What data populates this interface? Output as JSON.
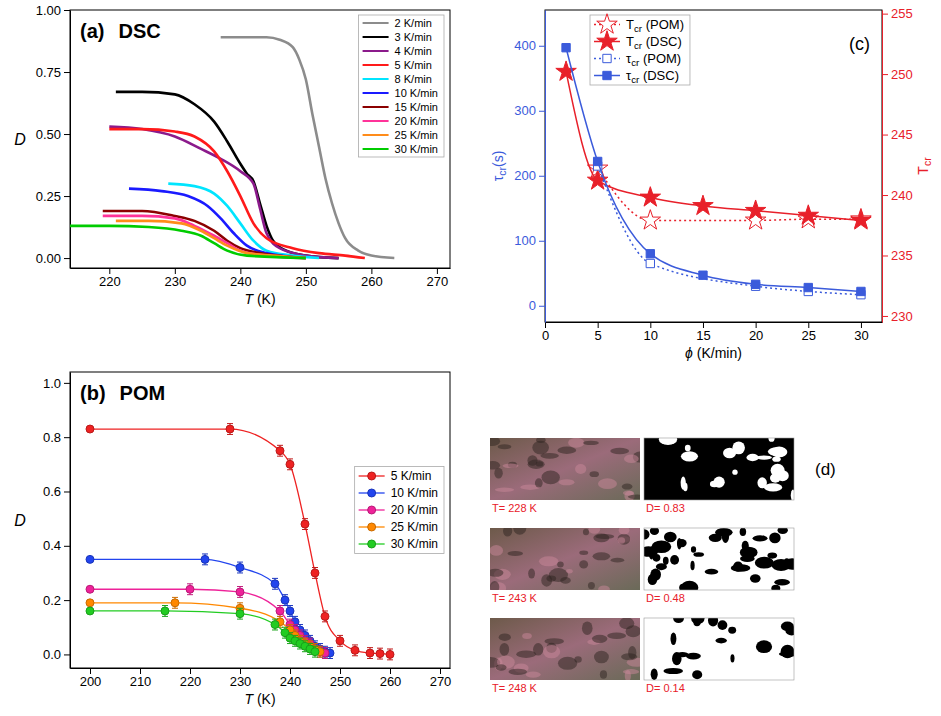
{
  "chart_data": [
    {
      "type": "line",
      "panel": "(a)",
      "title": "DSC",
      "xlabel": "T (K)",
      "ylabel": "D",
      "xlim": [
        214,
        272
      ],
      "ylim": [
        -0.04,
        1.0
      ],
      "xticks": [
        220,
        230,
        240,
        250,
        260,
        270
      ],
      "yticks": [
        {
          "value": 0,
          "label": "0.00"
        },
        0.25,
        {
          "value": 0.5,
          "label": "0.50"
        },
        0.75,
        {
          "value": 1,
          "label": "1.00"
        }
      ],
      "legend": "top-right",
      "series": [
        {
          "name": "2 K/min",
          "color": "#8c8c8c",
          "x": [
            237,
            240,
            244,
            246,
            248,
            249,
            250,
            251,
            252,
            253,
            254,
            255,
            256,
            258,
            260,
            263.5
          ],
          "values": [
            0.89,
            0.89,
            0.89,
            0.88,
            0.85,
            0.8,
            0.72,
            0.58,
            0.45,
            0.32,
            0.22,
            0.14,
            0.08,
            0.03,
            0.01,
            0.0
          ]
        },
        {
          "name": "3 K/min",
          "color": "#000000",
          "x": [
            221,
            225,
            230,
            233,
            236,
            238,
            240,
            241,
            242,
            243,
            244,
            245,
            247,
            250,
            255
          ],
          "values": [
            0.67,
            0.67,
            0.66,
            0.62,
            0.55,
            0.47,
            0.38,
            0.34,
            0.31,
            0.22,
            0.13,
            0.07,
            0.03,
            0.01,
            0.0
          ]
        },
        {
          "name": "4 K/min",
          "color": "#8b1a8b",
          "x": [
            220,
            225,
            230,
            234,
            237,
            240,
            242,
            243,
            244,
            246,
            250,
            255
          ],
          "values": [
            0.53,
            0.52,
            0.49,
            0.44,
            0.4,
            0.35,
            0.3,
            0.2,
            0.1,
            0.04,
            0.01,
            0.0
          ]
        },
        {
          "name": "5 K/min",
          "color": "#ff1a1a",
          "x": [
            220,
            225,
            230,
            233,
            236,
            238,
            240,
            242,
            244,
            248,
            252,
            256,
            259
          ],
          "values": [
            0.52,
            0.52,
            0.51,
            0.49,
            0.43,
            0.35,
            0.25,
            0.14,
            0.08,
            0.04,
            0.02,
            0.01,
            0.0
          ]
        },
        {
          "name": "8 K/min",
          "color": "#00e5ff",
          "x": [
            229,
            233,
            236,
            238,
            240,
            242,
            244,
            248,
            252
          ],
          "values": [
            0.3,
            0.29,
            0.26,
            0.21,
            0.14,
            0.07,
            0.03,
            0.01,
            0.0
          ]
        },
        {
          "name": "10 K/min",
          "color": "#1a1aff",
          "x": [
            223,
            228,
            232,
            235,
            237,
            239,
            241,
            244,
            250
          ],
          "values": [
            0.28,
            0.27,
            0.25,
            0.21,
            0.16,
            0.1,
            0.05,
            0.02,
            0.0
          ]
        },
        {
          "name": "15 K/min",
          "color": "#8b0000",
          "x": [
            219,
            225,
            230,
            233,
            236,
            238,
            240,
            243,
            250
          ],
          "values": [
            0.19,
            0.19,
            0.17,
            0.15,
            0.11,
            0.07,
            0.04,
            0.02,
            0.0
          ]
        },
        {
          "name": "20 K/min",
          "color": "#ff3399",
          "x": [
            219,
            225,
            230,
            233,
            236,
            238,
            240,
            244,
            250
          ],
          "values": [
            0.17,
            0.17,
            0.16,
            0.13,
            0.09,
            0.06,
            0.03,
            0.01,
            0.0
          ]
        },
        {
          "name": "25 K/min",
          "color": "#ff8c1a",
          "x": [
            221,
            226,
            231,
            234,
            236,
            238,
            241,
            245,
            250
          ],
          "values": [
            0.15,
            0.15,
            0.14,
            0.11,
            0.08,
            0.05,
            0.02,
            0.01,
            0.0
          ]
        },
        {
          "name": "30 K/min",
          "color": "#00cc00",
          "x": [
            214,
            220,
            226,
            231,
            234,
            236,
            238,
            241,
            250
          ],
          "values": [
            0.13,
            0.13,
            0.125,
            0.11,
            0.09,
            0.06,
            0.03,
            0.01,
            0.0
          ]
        }
      ]
    },
    {
      "type": "line",
      "panel": "(b)",
      "title": "POM",
      "xlabel": "T (K)",
      "ylabel": "D",
      "xlim": [
        196,
        272
      ],
      "ylim": [
        -0.05,
        1.04
      ],
      "xticks": [
        200,
        210,
        220,
        230,
        240,
        250,
        260,
        270
      ],
      "yticks": [
        {
          "value": 0,
          "label": "0.0"
        },
        0.2,
        0.4,
        0.6,
        0.8,
        {
          "value": 1,
          "label": "1.0"
        }
      ],
      "legend": "right",
      "series": [
        {
          "name": "5 K/min",
          "color": "#ee2222",
          "marker": "circle",
          "x": [
            200,
            228,
            238,
            240,
            243,
            245,
            247,
            250,
            253,
            256,
            258,
            260
          ],
          "values": [
            0.83,
            0.83,
            0.75,
            0.7,
            0.48,
            0.3,
            0.14,
            0.05,
            0.015,
            0.005,
            0.003,
            0.0
          ],
          "errors": [
            null,
            0.02,
            0.02,
            0.02,
            0.02,
            0.02,
            0.02,
            0.02,
            0.02,
            0.02,
            0.02,
            0.02
          ]
        },
        {
          "name": "10 K/min",
          "color": "#2244ee",
          "marker": "circle",
          "x": [
            200,
            223,
            230,
            237,
            239,
            240,
            241,
            242,
            243,
            244,
            245,
            246,
            247,
            248
          ],
          "values": [
            0.35,
            0.35,
            0.32,
            0.26,
            0.2,
            0.16,
            0.12,
            0.09,
            0.07,
            0.05,
            0.03,
            0.02,
            0.01,
            0.005
          ],
          "errors": [
            null,
            0.02,
            0.02,
            0.02,
            0.02,
            0.02,
            0.02,
            0.02,
            0.02,
            0.02,
            0.02,
            0.02,
            0.02,
            0.02
          ]
        },
        {
          "name": "20 K/min",
          "color": "#ee2299",
          "marker": "circle",
          "x": [
            200,
            220,
            230,
            238,
            240,
            241,
            242,
            243,
            244,
            245,
            246,
            247
          ],
          "values": [
            0.24,
            0.24,
            0.23,
            0.16,
            0.11,
            0.09,
            0.07,
            0.05,
            0.04,
            0.02,
            0.01,
            0.005
          ],
          "errors": [
            null,
            0.02,
            0.02,
            0.02,
            0.02,
            0.02,
            0.02,
            0.02,
            0.02,
            0.02,
            0.02,
            0.02
          ]
        },
        {
          "name": "25 K/min",
          "color": "#ff8800",
          "marker": "circle",
          "x": [
            200,
            217,
            230,
            238,
            240,
            241,
            242,
            243,
            244,
            245,
            246
          ],
          "values": [
            0.19,
            0.19,
            0.17,
            0.12,
            0.09,
            0.07,
            0.05,
            0.04,
            0.03,
            0.02,
            0.01
          ],
          "errors": [
            null,
            0.02,
            0.02,
            0.02,
            0.02,
            0.02,
            0.02,
            0.02,
            0.02,
            0.02,
            0.02
          ]
        },
        {
          "name": "30 K/min",
          "color": "#22cc22",
          "marker": "circle",
          "x": [
            200,
            215,
            230,
            237,
            239,
            240,
            241,
            242,
            243,
            244,
            245
          ],
          "values": [
            0.16,
            0.16,
            0.15,
            0.11,
            0.08,
            0.06,
            0.05,
            0.04,
            0.03,
            0.02,
            0.01
          ],
          "errors": [
            null,
            0.02,
            0.02,
            0.02,
            0.02,
            0.02,
            0.02,
            0.02,
            0.02,
            0.02,
            0.02
          ]
        }
      ]
    },
    {
      "type": "line",
      "panel": "(c)",
      "xlabel": "ϕ (K/min)",
      "ylabel": "τcr(s)",
      "y2label": "Tcr",
      "xlim": [
        0,
        32
      ],
      "ylim": [
        -25,
        455
      ],
      "y2lim": [
        229.5,
        255.3
      ],
      "xticks": [
        0,
        5,
        10,
        15,
        20,
        25,
        30
      ],
      "yticks": [
        0,
        100,
        200,
        300,
        400
      ],
      "y2ticks": [
        230,
        235,
        240,
        245,
        250,
        255
      ],
      "legend": "top-left",
      "series": [
        {
          "name": "Tcr (POM)",
          "color": "#e8202a",
          "axis": "y2",
          "marker": "star-open",
          "line_style": "dotted",
          "x": [
            5,
            10,
            20,
            25,
            30
          ],
          "values": [
            242.2,
            237.9,
            237.9,
            238.0,
            238.0
          ]
        },
        {
          "name": "Tcr (DSC)",
          "color": "#e8202a",
          "axis": "y2",
          "marker": "star",
          "line_style": "solid",
          "x": [
            2,
            5,
            10,
            15,
            20,
            25,
            30
          ],
          "values": [
            250.2,
            241.2,
            239.8,
            239.1,
            238.7,
            238.3,
            237.9
          ]
        },
        {
          "name": "τcr (POM)",
          "color": "#3b5bdb",
          "marker": "square-open",
          "line_style": "dotted",
          "x": [
            5,
            10,
            20,
            25,
            30
          ],
          "values": [
            215,
            65,
            30,
            22,
            17
          ]
        },
        {
          "name": "τcr (DSC)",
          "color": "#3b5bdb",
          "marker": "square",
          "line_style": "solid",
          "x": [
            2,
            5,
            10,
            15,
            20,
            25,
            30
          ],
          "values": [
            397,
            222,
            80,
            47,
            33,
            28,
            22
          ]
        }
      ]
    }
  ],
  "images": {
    "panel": "(d)",
    "items": [
      {
        "temperature": "T= 228 K",
        "fraction": "D= 0.83"
      },
      {
        "temperature": "T= 243 K",
        "fraction": "D= 0.48"
      },
      {
        "temperature": "T= 248 K",
        "fraction": "D= 0.14"
      }
    ]
  }
}
